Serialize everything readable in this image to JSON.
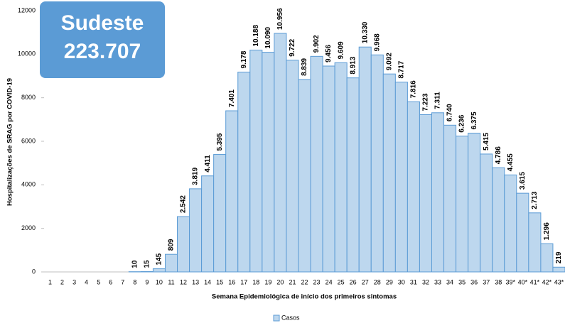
{
  "chart_data": {
    "type": "bar",
    "annotation": {
      "title": "Sudeste",
      "value": "223.707"
    },
    "ylabel": "Hospitalizações de SRAG por COVID-19",
    "xlabel": "Semana Epidemiológica de início dos primeiros sintomas",
    "categories": [
      "1",
      "2",
      "3",
      "4",
      "5",
      "6",
      "7",
      "8",
      "9",
      "10",
      "11",
      "12",
      "13",
      "14",
      "15",
      "16",
      "17",
      "18",
      "19",
      "20",
      "21",
      "22",
      "23",
      "24",
      "25",
      "26",
      "27",
      "28",
      "29",
      "30",
      "31",
      "32",
      "33",
      "34",
      "35",
      "36",
      "37",
      "38",
      "39*",
      "40*",
      "41*",
      "42*",
      "43*"
    ],
    "series": [
      {
        "name": "Casos",
        "color": "#bdd7ee",
        "edgecolor": "#5b9bd5",
        "values": [
          0,
          0,
          0,
          0,
          0,
          0,
          0,
          10,
          15,
          145,
          809,
          2542,
          3819,
          4411,
          5395,
          7401,
          9178,
          10188,
          10090,
          10956,
          9722,
          8839,
          9902,
          9456,
          9609,
          8913,
          10330,
          9968,
          9092,
          8717,
          7816,
          7223,
          7311,
          6740,
          6236,
          6375,
          5415,
          4786,
          4455,
          3615,
          2713,
          1296,
          219
        ],
        "value_labels": [
          null,
          null,
          null,
          null,
          null,
          null,
          null,
          "10",
          "15",
          "145",
          "809",
          "2.542",
          "3.819",
          "4.411",
          "5.395",
          "7.401",
          "9.178",
          "10.188",
          "10.090",
          "10.956",
          "9.722",
          "8.839",
          "9.902",
          "9.456",
          "9.609",
          "8.913",
          "10.330",
          "9.968",
          "9.092",
          "8.717",
          "7.816",
          "7.223",
          "7.311",
          "6.740",
          "6.236",
          "6.375",
          "5.415",
          "4.786",
          "4.455",
          "3.615",
          "2.713",
          "1.296",
          "219"
        ]
      }
    ],
    "ylim": [
      0,
      12000
    ],
    "yticks": [
      0,
      2000,
      4000,
      6000,
      8000,
      10000,
      12000
    ],
    "legend": "bottom"
  }
}
